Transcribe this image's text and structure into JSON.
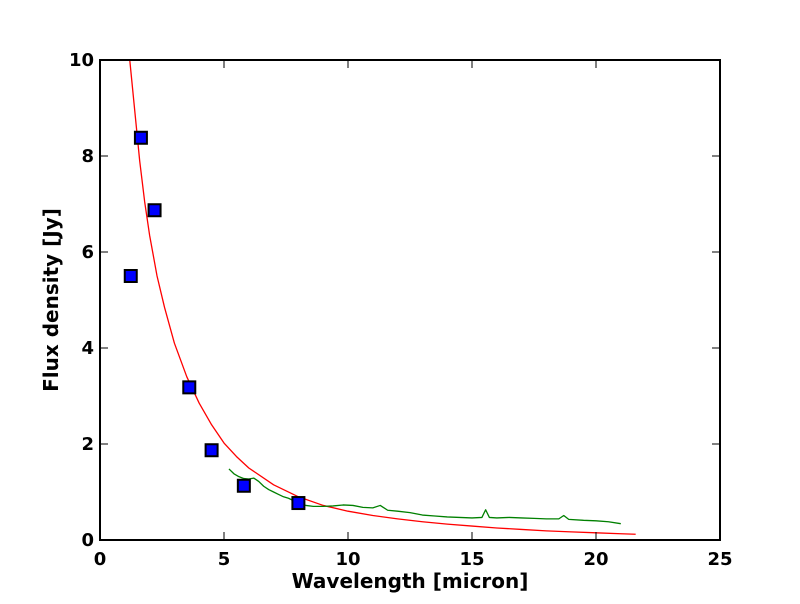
{
  "chart_data": {
    "type": "line",
    "title": "",
    "xlabel": "Wavelength [micron]",
    "ylabel": "Flux density [Jy]",
    "xlim": [
      0,
      25
    ],
    "ylim": [
      0,
      10
    ],
    "x_ticks": [
      0,
      5,
      10,
      15,
      20,
      25
    ],
    "y_ticks": [
      0,
      2,
      4,
      6,
      8,
      10
    ],
    "x_tick_labels": [
      "0",
      "5",
      "10",
      "15",
      "20",
      "25"
    ],
    "y_tick_labels": [
      "0",
      "2",
      "4",
      "6",
      "8",
      "10"
    ],
    "grid": false,
    "legend": "none",
    "series": [
      {
        "kind": "markers",
        "marker": "square",
        "color": "#0000ff",
        "edge_color": "#000000",
        "points": [
          [
            1.24,
            5.5
          ],
          [
            1.65,
            8.38
          ],
          [
            2.2,
            6.87
          ],
          [
            3.6,
            3.18
          ],
          [
            4.5,
            1.87
          ],
          [
            5.8,
            1.13
          ],
          [
            8.0,
            0.77
          ]
        ]
      },
      {
        "kind": "line",
        "color": "#ff0000",
        "points": [
          [
            1.2,
            10.0
          ],
          [
            1.4,
            8.95
          ],
          [
            1.6,
            7.9
          ],
          [
            1.8,
            7.05
          ],
          [
            2.0,
            6.35
          ],
          [
            2.3,
            5.5
          ],
          [
            2.6,
            4.85
          ],
          [
            3.0,
            4.1
          ],
          [
            3.5,
            3.4
          ],
          [
            4.0,
            2.85
          ],
          [
            4.5,
            2.4
          ],
          [
            5.0,
            2.02
          ],
          [
            5.5,
            1.74
          ],
          [
            6.0,
            1.5
          ],
          [
            7.0,
            1.15
          ],
          [
            8.0,
            0.9
          ],
          [
            9.0,
            0.72
          ],
          [
            10.0,
            0.6
          ],
          [
            11.0,
            0.51
          ],
          [
            12.0,
            0.44
          ],
          [
            13.0,
            0.38
          ],
          [
            14.0,
            0.33
          ],
          [
            15.0,
            0.29
          ],
          [
            16.0,
            0.25
          ],
          [
            17.0,
            0.22
          ],
          [
            18.0,
            0.19
          ],
          [
            19.0,
            0.17
          ],
          [
            20.0,
            0.15
          ],
          [
            21.0,
            0.13
          ],
          [
            21.6,
            0.12
          ]
        ]
      },
      {
        "kind": "line",
        "color": "#008000",
        "points": [
          [
            5.2,
            1.48
          ],
          [
            5.4,
            1.38
          ],
          [
            5.6,
            1.32
          ],
          [
            5.8,
            1.28
          ],
          [
            6.0,
            1.27
          ],
          [
            6.2,
            1.29
          ],
          [
            6.4,
            1.22
          ],
          [
            6.6,
            1.12
          ],
          [
            6.8,
            1.05
          ],
          [
            7.0,
            1.0
          ],
          [
            7.2,
            0.95
          ],
          [
            7.4,
            0.9
          ],
          [
            7.6,
            0.87
          ],
          [
            7.8,
            0.82
          ],
          [
            8.0,
            0.78
          ],
          [
            8.3,
            0.72
          ],
          [
            8.6,
            0.7
          ],
          [
            9.0,
            0.7
          ],
          [
            9.4,
            0.71
          ],
          [
            9.8,
            0.73
          ],
          [
            10.2,
            0.72
          ],
          [
            10.6,
            0.68
          ],
          [
            11.0,
            0.67
          ],
          [
            11.3,
            0.72
          ],
          [
            11.6,
            0.62
          ],
          [
            12.0,
            0.6
          ],
          [
            12.5,
            0.57
          ],
          [
            13.0,
            0.52
          ],
          [
            13.5,
            0.5
          ],
          [
            14.0,
            0.48
          ],
          [
            14.5,
            0.47
          ],
          [
            15.0,
            0.46
          ],
          [
            15.4,
            0.47
          ],
          [
            15.55,
            0.63
          ],
          [
            15.7,
            0.47
          ],
          [
            16.0,
            0.46
          ],
          [
            16.5,
            0.47
          ],
          [
            17.0,
            0.46
          ],
          [
            17.5,
            0.45
          ],
          [
            18.0,
            0.44
          ],
          [
            18.5,
            0.44
          ],
          [
            18.7,
            0.51
          ],
          [
            18.9,
            0.43
          ],
          [
            19.5,
            0.41
          ],
          [
            20.0,
            0.4
          ],
          [
            20.5,
            0.38
          ],
          [
            21.0,
            0.34
          ]
        ]
      }
    ]
  }
}
